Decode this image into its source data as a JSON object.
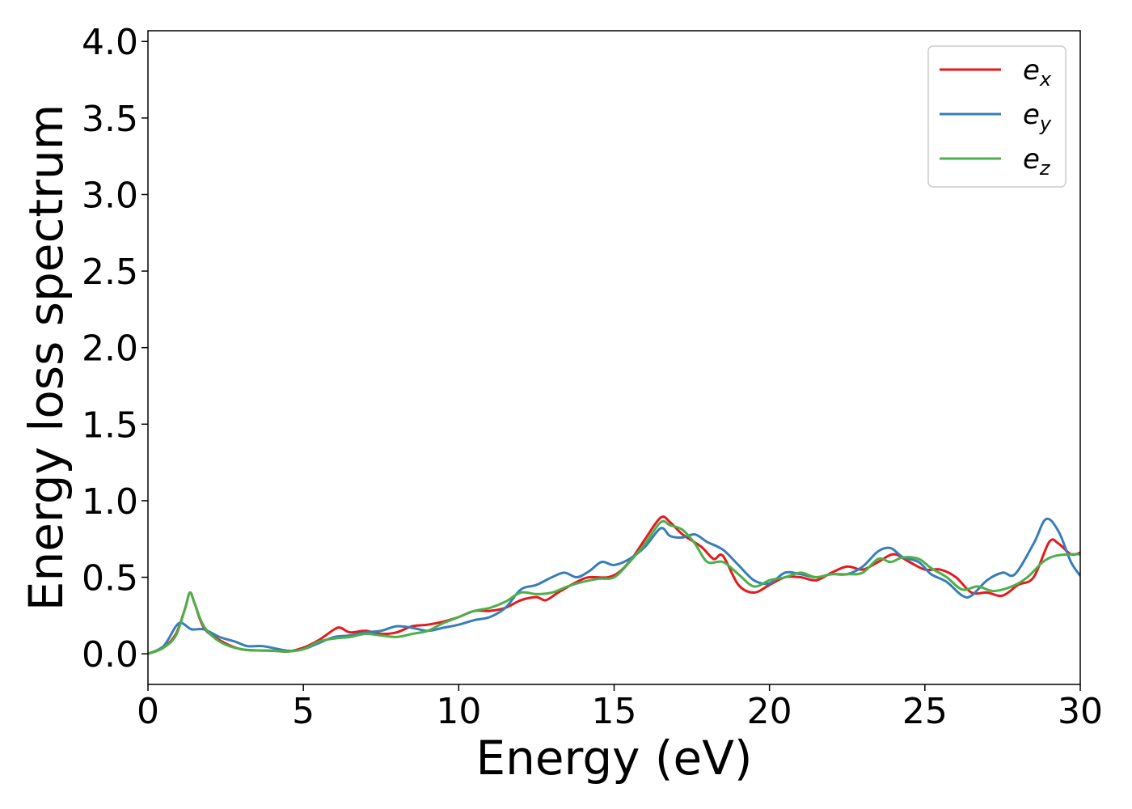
{
  "chart_data": {
    "type": "line",
    "title": "",
    "xlabel": "Energy (eV)",
    "ylabel": "Energy loss spectrum",
    "xlim": [
      0,
      30
    ],
    "ylim": [
      -0.2,
      4.07
    ],
    "xticks": [
      0,
      5,
      10,
      15,
      20,
      25,
      30
    ],
    "xtick_labels": [
      "0",
      "5",
      "10",
      "15",
      "20",
      "25",
      "30"
    ],
    "yticks": [
      0.0,
      0.5,
      1.0,
      1.5,
      2.0,
      2.5,
      3.0,
      3.5,
      4.0
    ],
    "ytick_labels": [
      "0.0",
      "0.5",
      "1.0",
      "1.5",
      "2.0",
      "2.5",
      "3.0",
      "3.5",
      "4.0"
    ],
    "grid": false,
    "legend_position": "top-right",
    "series": [
      {
        "name": "e",
        "subscript": "x",
        "color": "#e41a1c",
        "points": [
          [
            0,
            0
          ],
          [
            0.5,
            0.04
          ],
          [
            0.9,
            0.13
          ],
          [
            1.2,
            0.3
          ],
          [
            1.35,
            0.4
          ],
          [
            1.5,
            0.33
          ],
          [
            1.8,
            0.17
          ],
          [
            2.3,
            0.09
          ],
          [
            3,
            0.03
          ],
          [
            4,
            0.02
          ],
          [
            4.5,
            0.015
          ],
          [
            5,
            0.04
          ],
          [
            5.5,
            0.09
          ],
          [
            6,
            0.16
          ],
          [
            6.2,
            0.17
          ],
          [
            6.5,
            0.14
          ],
          [
            7,
            0.15
          ],
          [
            7.5,
            0.13
          ],
          [
            8,
            0.14
          ],
          [
            8.5,
            0.18
          ],
          [
            9,
            0.19
          ],
          [
            9.5,
            0.21
          ],
          [
            10,
            0.24
          ],
          [
            10.5,
            0.28
          ],
          [
            11,
            0.28
          ],
          [
            11.5,
            0.3
          ],
          [
            12,
            0.35
          ],
          [
            12.5,
            0.37
          ],
          [
            12.8,
            0.35
          ],
          [
            13.2,
            0.4
          ],
          [
            13.8,
            0.47
          ],
          [
            14.2,
            0.5
          ],
          [
            14.8,
            0.5
          ],
          [
            15.2,
            0.54
          ],
          [
            15.6,
            0.63
          ],
          [
            16,
            0.75
          ],
          [
            16.5,
            0.89
          ],
          [
            16.8,
            0.86
          ],
          [
            17.2,
            0.78
          ],
          [
            17.8,
            0.7
          ],
          [
            18.2,
            0.62
          ],
          [
            18.5,
            0.64
          ],
          [
            19,
            0.45
          ],
          [
            19.5,
            0.4
          ],
          [
            20,
            0.45
          ],
          [
            20.5,
            0.5
          ],
          [
            21,
            0.5
          ],
          [
            21.5,
            0.48
          ],
          [
            22,
            0.53
          ],
          [
            22.5,
            0.57
          ],
          [
            23,
            0.55
          ],
          [
            23.5,
            0.6
          ],
          [
            24,
            0.65
          ],
          [
            24.5,
            0.6
          ],
          [
            25,
            0.55
          ],
          [
            25.5,
            0.55
          ],
          [
            26,
            0.5
          ],
          [
            26.5,
            0.4
          ],
          [
            27,
            0.4
          ],
          [
            27.5,
            0.38
          ],
          [
            28,
            0.45
          ],
          [
            28.5,
            0.5
          ],
          [
            29,
            0.73
          ],
          [
            29.3,
            0.72
          ],
          [
            29.7,
            0.65
          ],
          [
            30,
            0.66
          ]
        ]
      },
      {
        "name": "e",
        "subscript": "y",
        "color": "#377eb8",
        "points": [
          [
            0,
            0
          ],
          [
            0.5,
            0.05
          ],
          [
            0.9,
            0.18
          ],
          [
            1.1,
            0.2
          ],
          [
            1.4,
            0.16
          ],
          [
            1.8,
            0.16
          ],
          [
            2.3,
            0.11
          ],
          [
            2.8,
            0.08
          ],
          [
            3.2,
            0.05
          ],
          [
            3.7,
            0.05
          ],
          [
            4.5,
            0.02
          ],
          [
            5,
            0.03
          ],
          [
            5.5,
            0.07
          ],
          [
            6,
            0.11
          ],
          [
            6.5,
            0.12
          ],
          [
            7,
            0.14
          ],
          [
            7.5,
            0.15
          ],
          [
            8,
            0.18
          ],
          [
            8.5,
            0.17
          ],
          [
            9,
            0.15
          ],
          [
            9.5,
            0.17
          ],
          [
            10,
            0.19
          ],
          [
            10.5,
            0.22
          ],
          [
            11,
            0.24
          ],
          [
            11.5,
            0.3
          ],
          [
            12,
            0.42
          ],
          [
            12.5,
            0.45
          ],
          [
            13,
            0.5
          ],
          [
            13.4,
            0.53
          ],
          [
            13.8,
            0.5
          ],
          [
            14.2,
            0.54
          ],
          [
            14.6,
            0.6
          ],
          [
            15,
            0.58
          ],
          [
            15.5,
            0.62
          ],
          [
            16,
            0.7
          ],
          [
            16.5,
            0.82
          ],
          [
            16.8,
            0.77
          ],
          [
            17.2,
            0.76
          ],
          [
            17.6,
            0.78
          ],
          [
            18,
            0.73
          ],
          [
            18.5,
            0.68
          ],
          [
            19,
            0.58
          ],
          [
            19.5,
            0.48
          ],
          [
            20,
            0.46
          ],
          [
            20.5,
            0.53
          ],
          [
            21,
            0.52
          ],
          [
            21.5,
            0.5
          ],
          [
            22,
            0.52
          ],
          [
            22.5,
            0.52
          ],
          [
            23,
            0.57
          ],
          [
            23.5,
            0.67
          ],
          [
            23.9,
            0.69
          ],
          [
            24.3,
            0.63
          ],
          [
            24.8,
            0.6
          ],
          [
            25.2,
            0.52
          ],
          [
            25.7,
            0.47
          ],
          [
            26.2,
            0.38
          ],
          [
            26.5,
            0.38
          ],
          [
            27,
            0.48
          ],
          [
            27.5,
            0.53
          ],
          [
            27.9,
            0.52
          ],
          [
            28.5,
            0.72
          ],
          [
            28.9,
            0.88
          ],
          [
            29.3,
            0.8
          ],
          [
            29.7,
            0.6
          ],
          [
            30,
            0.51
          ]
        ]
      },
      {
        "name": "e",
        "subscript": "z",
        "color": "#4daf4a",
        "points": [
          [
            0,
            0
          ],
          [
            0.5,
            0.04
          ],
          [
            0.9,
            0.12
          ],
          [
            1.2,
            0.3
          ],
          [
            1.35,
            0.4
          ],
          [
            1.5,
            0.33
          ],
          [
            1.8,
            0.18
          ],
          [
            2.3,
            0.08
          ],
          [
            3,
            0.03
          ],
          [
            4,
            0.02
          ],
          [
            4.5,
            0.015
          ],
          [
            5,
            0.03
          ],
          [
            5.5,
            0.08
          ],
          [
            6,
            0.1
          ],
          [
            6.5,
            0.11
          ],
          [
            7,
            0.13
          ],
          [
            7.5,
            0.12
          ],
          [
            8,
            0.11
          ],
          [
            8.5,
            0.13
          ],
          [
            9,
            0.15
          ],
          [
            9.5,
            0.2
          ],
          [
            10,
            0.24
          ],
          [
            10.5,
            0.28
          ],
          [
            11,
            0.3
          ],
          [
            11.5,
            0.34
          ],
          [
            12,
            0.4
          ],
          [
            12.5,
            0.39
          ],
          [
            13,
            0.4
          ],
          [
            13.5,
            0.44
          ],
          [
            14,
            0.47
          ],
          [
            14.5,
            0.49
          ],
          [
            15,
            0.5
          ],
          [
            15.5,
            0.6
          ],
          [
            16,
            0.72
          ],
          [
            16.5,
            0.86
          ],
          [
            16.8,
            0.84
          ],
          [
            17.2,
            0.81
          ],
          [
            17.6,
            0.72
          ],
          [
            18,
            0.6
          ],
          [
            18.5,
            0.6
          ],
          [
            19,
            0.52
          ],
          [
            19.5,
            0.44
          ],
          [
            20,
            0.48
          ],
          [
            20.5,
            0.5
          ],
          [
            21,
            0.53
          ],
          [
            21.5,
            0.5
          ],
          [
            22,
            0.52
          ],
          [
            22.5,
            0.52
          ],
          [
            23,
            0.53
          ],
          [
            23.5,
            0.62
          ],
          [
            23.9,
            0.6
          ],
          [
            24.3,
            0.63
          ],
          [
            24.8,
            0.62
          ],
          [
            25.2,
            0.56
          ],
          [
            25.7,
            0.5
          ],
          [
            26.2,
            0.42
          ],
          [
            26.7,
            0.44
          ],
          [
            27.2,
            0.41
          ],
          [
            27.8,
            0.44
          ],
          [
            28.3,
            0.5
          ],
          [
            28.8,
            0.6
          ],
          [
            29.2,
            0.64
          ],
          [
            29.7,
            0.65
          ],
          [
            30,
            0.65
          ]
        ]
      }
    ]
  }
}
